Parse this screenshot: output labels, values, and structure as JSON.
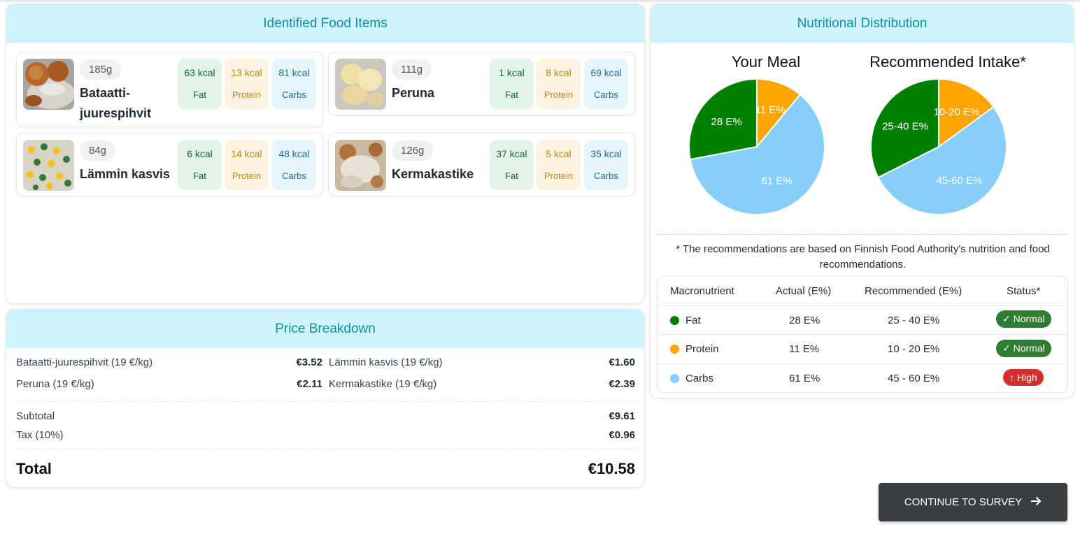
{
  "food_panel": {
    "title": "Identified Food Items",
    "items": [
      {
        "weight": "185g",
        "name": "Bataatti-juurespihvit",
        "fat_kcal": "63 kcal",
        "protein_kcal": "13 kcal",
        "carbs_kcal": "81 kcal"
      },
      {
        "weight": "111g",
        "name": "Peruna",
        "fat_kcal": "1 kcal",
        "protein_kcal": "8 kcal",
        "carbs_kcal": "69 kcal"
      },
      {
        "weight": "84g",
        "name": "Lämmin kasvis",
        "fat_kcal": "6 kcal",
        "protein_kcal": "14 kcal",
        "carbs_kcal": "48 kcal"
      },
      {
        "weight": "126g",
        "name": "Kermakastike",
        "fat_kcal": "37 kcal",
        "protein_kcal": "5 kcal",
        "carbs_kcal": "35 kcal"
      }
    ],
    "labels": {
      "fat": "Fat",
      "protein": "Protein",
      "carbs": "Carbs"
    }
  },
  "nutrition_panel": {
    "title": "Nutritional Distribution",
    "meal_title": "Your Meal",
    "recommended_title": "Recommended Intake*",
    "note": "* The recommendations are based on Finnish Food Authority's nutrition and food recommendations.",
    "table": {
      "headers": [
        "Macronutrient",
        "Actual (E%)",
        "Recommended (E%)",
        "Status*"
      ],
      "rows": [
        {
          "name": "Fat",
          "actual": "28 E%",
          "recommended": "25 - 40 E%",
          "status": "✓ Normal"
        },
        {
          "name": "Protein",
          "actual": "11 E%",
          "recommended": "10 - 20 E%",
          "status": "✓ Normal"
        },
        {
          "name": "Carbs",
          "actual": "61 E%",
          "recommended": "45 - 60 E%",
          "status": "↑ High"
        }
      ]
    }
  },
  "chart_data": [
    {
      "type": "pie",
      "title": "Your Meal",
      "categories": [
        "Fat",
        "Protein",
        "Carbs"
      ],
      "values": [
        28,
        11,
        61
      ],
      "labels": [
        "28 E%",
        "11 E%",
        "61 E%"
      ],
      "colors": [
        "#008000",
        "#FFA500",
        "#87CEFA"
      ]
    },
    {
      "type": "pie",
      "title": "Recommended Intake*",
      "categories": [
        "Fat",
        "Protein",
        "Carbs"
      ],
      "values": [
        32.5,
        15,
        52.5
      ],
      "labels": [
        "25-40 E%",
        "10-20 E%",
        "45-60 E%"
      ],
      "colors": [
        "#008000",
        "#FFA500",
        "#87CEFA"
      ]
    }
  ],
  "colors": {
    "fat": "#008000",
    "protein": "#FFA500",
    "carbs": "#87CEFA",
    "normal": "#2e7d32",
    "high": "#d32f2f"
  },
  "price_panel": {
    "title": "Price Breakdown",
    "items": [
      {
        "label": "Bataatti-juurespihvit (19 €/kg)",
        "price": "€3.52"
      },
      {
        "label": "Lämmin kasvis (19 €/kg)",
        "price": "€1.60"
      },
      {
        "label": "Peruna (19 €/kg)",
        "price": "€2.11"
      },
      {
        "label": "Kermakastike (19 €/kg)",
        "price": "€2.39"
      }
    ],
    "subtotal_label": "Subtotal",
    "subtotal": "€9.61",
    "tax_label": "Tax (10%)",
    "tax": "€0.96",
    "total_label": "Total",
    "total": "€10.58"
  },
  "continue_button": {
    "label": "CONTINUE TO SURVEY",
    "icon": "arrow-right-icon"
  }
}
